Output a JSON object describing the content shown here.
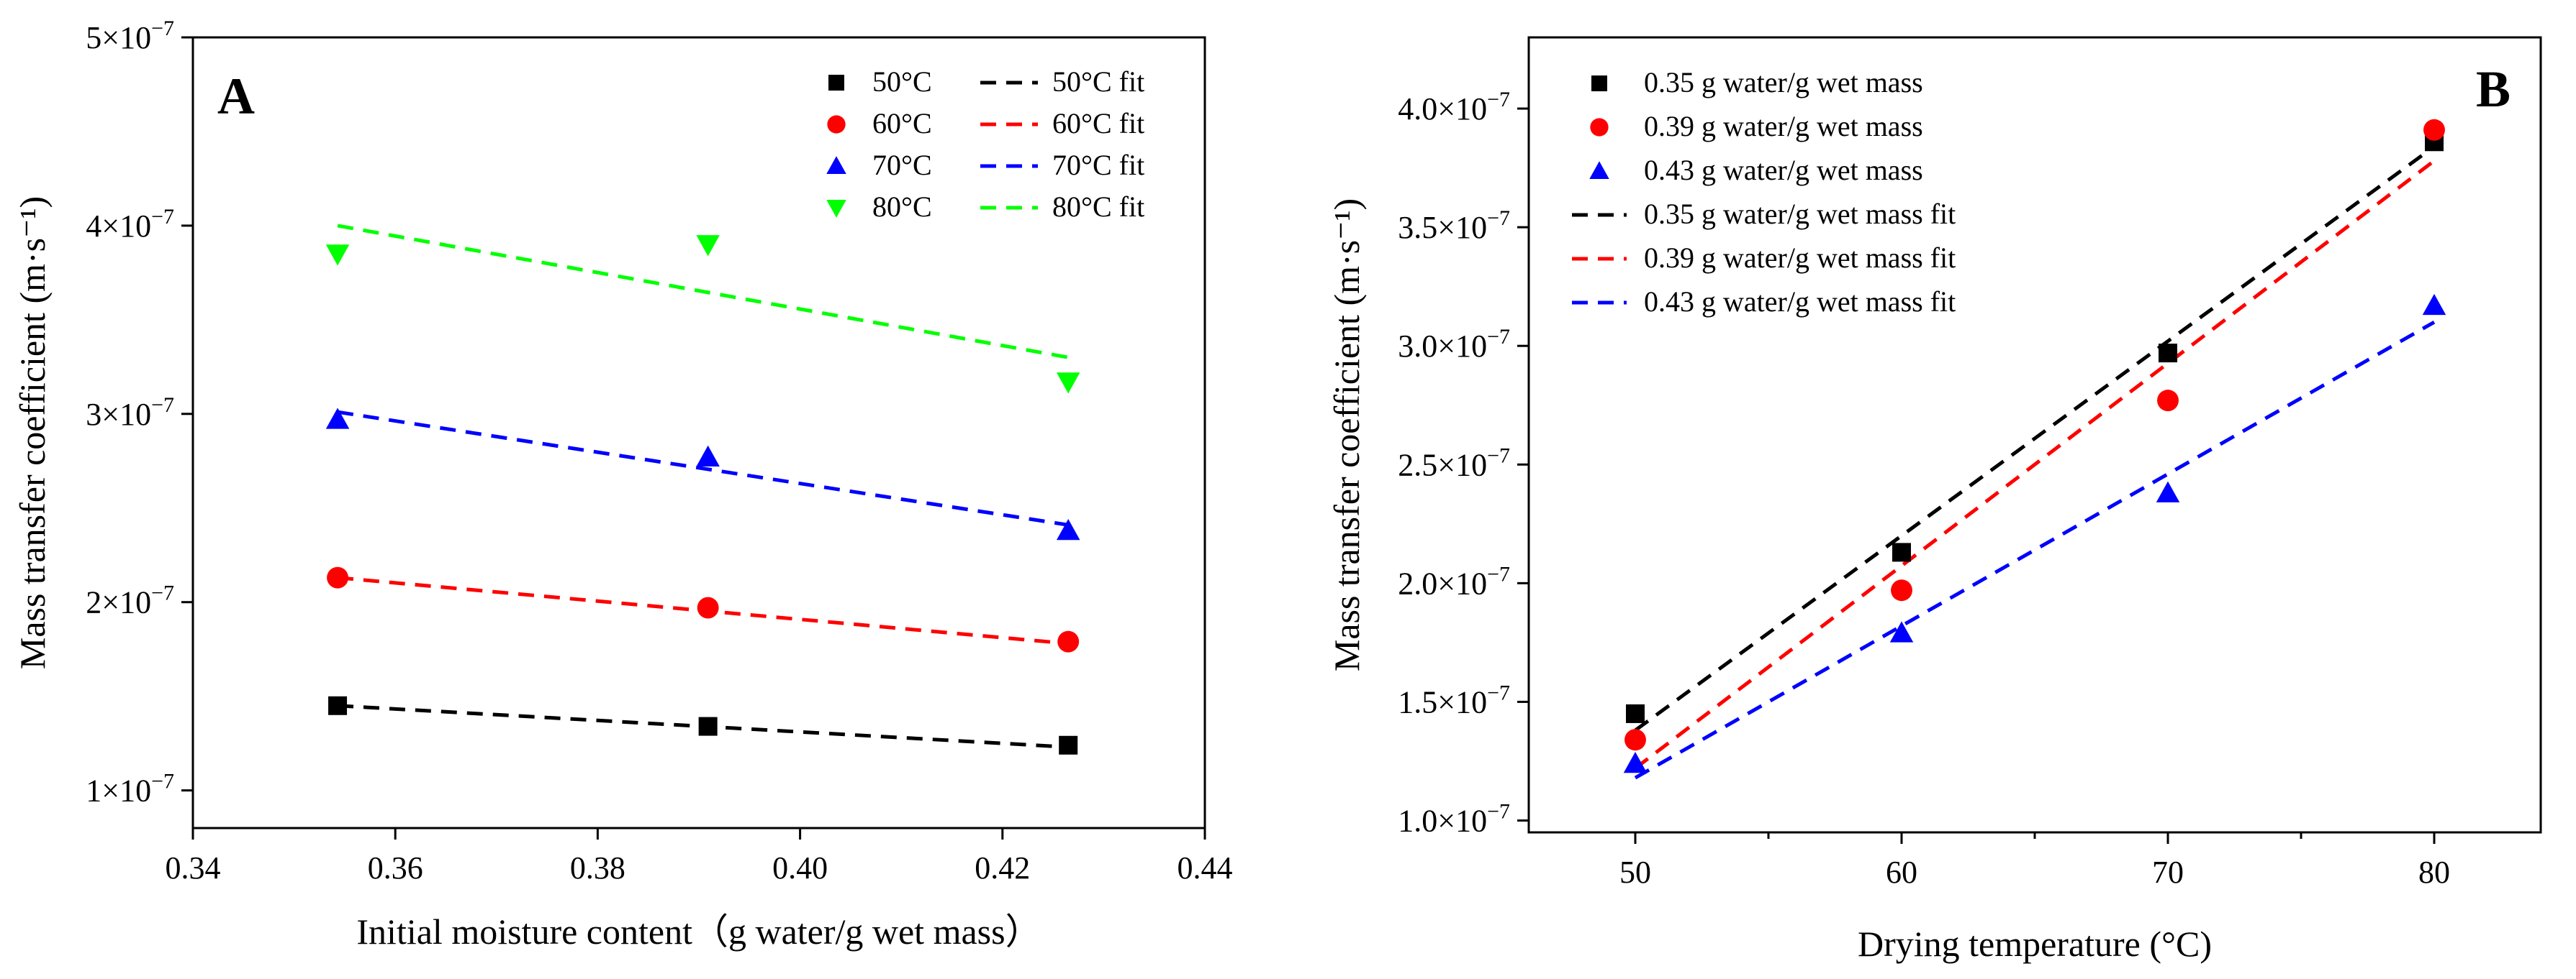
{
  "chart_data": [
    {
      "type": "scatter",
      "panel_label": "A",
      "xlabel": "Initial moisture content（g water/g wet mass）",
      "ylabel": "Mass transfer coefficient (m·s⁻¹)",
      "xlim": [
        0.34,
        0.44
      ],
      "ylim": [
        0.8,
        5.0
      ],
      "x_ticks": [
        0.34,
        0.36,
        0.38,
        0.4,
        0.42,
        0.44
      ],
      "x_tick_labels": [
        "0.34",
        "0.36",
        "0.38",
        "0.40",
        "0.42",
        "0.44"
      ],
      "y_ticks": [
        1,
        2,
        3,
        4,
        5
      ],
      "y_tick_labels": [
        {
          "mantissa": "1×10",
          "exp": "−7"
        },
        {
          "mantissa": "2×10",
          "exp": "−7"
        },
        {
          "mantissa": "3×10",
          "exp": "−7"
        },
        {
          "mantissa": "4×10",
          "exp": "−7"
        },
        {
          "mantissa": "5×10",
          "exp": "−7"
        }
      ],
      "legend_position": "top-right",
      "legend_columns": 2,
      "series": [
        {
          "name": "50°C",
          "marker": "square",
          "color": "#000000",
          "x": [
            0.3543,
            0.3909,
            0.4265
          ],
          "y": [
            1.45,
            1.34,
            1.24
          ]
        },
        {
          "name": "60°C",
          "marker": "circle",
          "color": "#ff0000",
          "x": [
            0.3543,
            0.3909,
            0.4265
          ],
          "y": [
            2.13,
            1.97,
            1.79
          ]
        },
        {
          "name": "70°C",
          "marker": "triangle-up",
          "color": "#0000ff",
          "x": [
            0.3543,
            0.3909,
            0.4265
          ],
          "y": [
            2.97,
            2.77,
            2.38
          ]
        },
        {
          "name": "80°C",
          "marker": "triangle-down",
          "color": "#00ff00",
          "x": [
            0.3543,
            0.3909,
            0.4265
          ],
          "y": [
            3.85,
            3.9,
            3.17
          ]
        }
      ],
      "fits": [
        {
          "name": "50°C fit",
          "color": "#000000",
          "x": [
            0.3543,
            0.4265
          ],
          "y": [
            1.45,
            1.23
          ]
        },
        {
          "name": "60°C fit",
          "color": "#ff0000",
          "x": [
            0.3543,
            0.4265
          ],
          "y": [
            2.13,
            1.78
          ]
        },
        {
          "name": "70°C fit",
          "color": "#0000ff",
          "x": [
            0.3543,
            0.4265
          ],
          "y": [
            3.01,
            2.41
          ]
        },
        {
          "name": "80°C fit",
          "color": "#00ff00",
          "x": [
            0.3543,
            0.4265
          ],
          "y": [
            4.0,
            3.3
          ]
        }
      ]
    },
    {
      "type": "scatter",
      "panel_label": "B",
      "xlabel": "Drying temperature (°C)",
      "ylabel": "Mass transfer coefficient (m·s⁻¹)",
      "xlim": [
        46,
        84
      ],
      "ylim": [
        0.95,
        4.3
      ],
      "x_ticks": [
        50,
        60,
        70,
        80
      ],
      "x_minor_ticks": [
        55,
        65,
        75
      ],
      "x_tick_labels": [
        "50",
        "60",
        "70",
        "80"
      ],
      "y_ticks": [
        1.0,
        1.5,
        2.0,
        2.5,
        3.0,
        3.5,
        4.0
      ],
      "y_tick_labels": [
        {
          "mantissa": "1.0×10",
          "exp": "−7"
        },
        {
          "mantissa": "1.5×10",
          "exp": "−7"
        },
        {
          "mantissa": "2.0×10",
          "exp": "−7"
        },
        {
          "mantissa": "2.5×10",
          "exp": "−7"
        },
        {
          "mantissa": "3.0×10",
          "exp": "−7"
        },
        {
          "mantissa": "3.5×10",
          "exp": "−7"
        },
        {
          "mantissa": "4.0×10",
          "exp": "−7"
        }
      ],
      "legend_position": "top-left",
      "series": [
        {
          "name": "0.35 g water/g wet mass",
          "marker": "square",
          "color": "#000000",
          "x": [
            50,
            60,
            70,
            80
          ],
          "y": [
            1.45,
            2.13,
            2.97,
            3.86
          ]
        },
        {
          "name": "0.39 g water/g wet mass",
          "marker": "circle",
          "color": "#ff0000",
          "x": [
            50,
            60,
            70,
            80
          ],
          "y": [
            1.34,
            1.97,
            2.77,
            3.91
          ]
        },
        {
          "name": "0.43 g water/g wet mass",
          "marker": "triangle-up",
          "color": "#0000ff",
          "x": [
            50,
            60,
            70,
            80
          ],
          "y": [
            1.24,
            1.79,
            2.38,
            3.17
          ]
        }
      ],
      "fits": [
        {
          "name": "0.35 g water/g wet mass fit",
          "color": "#000000",
          "x": [
            50,
            80
          ],
          "y": [
            1.38,
            3.84
          ]
        },
        {
          "name": "0.39 g water/g wet mass fit",
          "color": "#ff0000",
          "x": [
            50,
            80
          ],
          "y": [
            1.22,
            3.78
          ]
        },
        {
          "name": "0.43 g water/g wet mass fit",
          "color": "#0000ff",
          "x": [
            50,
            80
          ],
          "y": [
            1.18,
            3.1
          ]
        }
      ]
    }
  ]
}
